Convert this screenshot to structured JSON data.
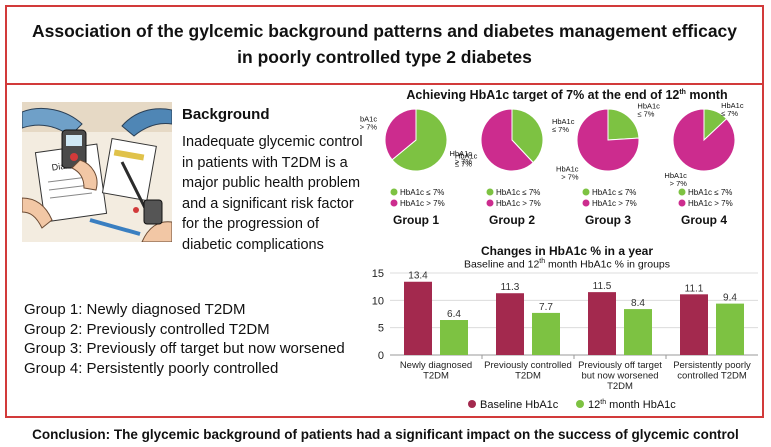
{
  "header": {
    "title_line1": "Association of the gylcemic background patterns and diabetes management efficacy",
    "title_line2": "in poorly controlled type 2 diabetes"
  },
  "illustration": {
    "sheet_label": "Diabetes"
  },
  "background": {
    "title": "Background",
    "text": "Inadequate glycemic control in patients with T2DM is a major public health problem and a significant risk factor for the progression of diabetic complications"
  },
  "groups": [
    "Group 1: Newly diagnosed T2DM",
    "Group 2: Previously controlled T2DM",
    "Group 3: Previously off target but now worsened",
    "Group 4: Persistently poorly controlled"
  ],
  "pie_section": {
    "title_pre": "Achieving HbA1c target of 7% at the end of 12",
    "title_sup": "th",
    "title_post": " month"
  },
  "bar_section": {
    "title": "Changes in HbA1c % in a year",
    "subtitle_pre": "Baseline and 12",
    "subtitle_sup": "th",
    "subtitle_post": " month HbA1c % in groups"
  },
  "conclusion": "Conclusion: The glycemic background of patients had a significant impact on the success of glycemic control",
  "colors": {
    "accent": "#d23a3a",
    "green": "#7dc242",
    "magenta": "#cc2c8e",
    "maroon": "#a3294e"
  },
  "chart_data": [
    {
      "type": "pie",
      "title": "Achieving HbA1c target of 7% at the end of 12th month",
      "legend": [
        "HbA1c ≤ 7%",
        "HbA1c > 7%"
      ],
      "annotation_top": "HbA1c",
      "groups": [
        {
          "name": "Group 1",
          "values": [
            64,
            36
          ],
          "label_le": "≤ 7%",
          "label_gt": "> 7%"
        },
        {
          "name": "Group 2",
          "values": [
            38,
            62
          ],
          "label_le": "≤ 7%",
          "label_gt": "> 7%"
        },
        {
          "name": "Group 3",
          "values": [
            24,
            76
          ],
          "label_le": "≤ 7%",
          "label_gt": "> 7%"
        },
        {
          "name": "Group 4",
          "values": [
            13,
            87
          ],
          "label_le": "≤ 7%",
          "label_gt": "> 7%"
        }
      ]
    },
    {
      "type": "bar",
      "title": "Changes in HbA1c % in a year",
      "subtitle": "Baseline and 12th month HbA1c % in groups",
      "categories": [
        [
          "Newly diagnosed",
          "T2DM"
        ],
        [
          "Previously controlled",
          "T2DM"
        ],
        [
          "Previously off target",
          "but now worsened",
          "T2DM"
        ],
        [
          "Persistently poorly",
          "controlled T2DM"
        ]
      ],
      "series": [
        {
          "name": "Baseline HbA1c",
          "values": [
            13.4,
            11.3,
            11.5,
            11.1
          ]
        },
        {
          "name": "12th month HbA1c",
          "name_pre": "12",
          "name_sup": "th",
          "name_post": " month HbA1c",
          "values": [
            6.4,
            7.7,
            8.4,
            9.4
          ]
        }
      ],
      "ylim": [
        0,
        15
      ],
      "yticks": [
        0,
        5,
        10,
        15
      ],
      "grid": true,
      "legend_position": "bottom"
    }
  ]
}
